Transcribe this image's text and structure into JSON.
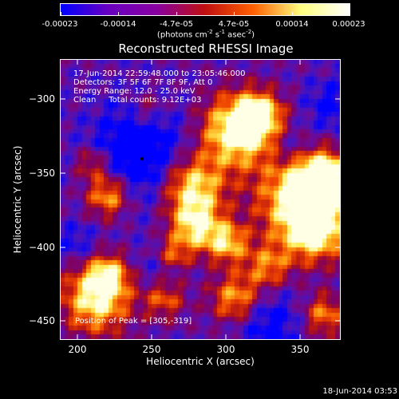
{
  "colorbar": {
    "labels": [
      "-0.00023",
      "-0.00014",
      "-4.7e-05",
      "4.7e-05",
      "0.00014",
      "0.00023"
    ],
    "units_prefix": "(photons cm",
    "units_exp1": "-2",
    "units_mid": " s",
    "units_exp2": "-1",
    "units_mid2": " asec",
    "units_exp3": "-2",
    "units_suffix": ")",
    "colors": [
      "#0000ff",
      "#6a00c0",
      "#8800a0",
      "#c01010",
      "#ff6000",
      "#ffff80",
      "#ffffff"
    ]
  },
  "plot": {
    "title": "Reconstructed RHESSI Image",
    "annotation": {
      "line1": "17-Jun-2014 22:59:48.000 to 23:05:46.000",
      "line2": "Detectors: 3F 5F 6F 7F 8F 9F, Att 0",
      "line3": "Energy Range: 12.0 - 25.0 keV",
      "line4": "Clean     Total counts: 9.12E+03"
    },
    "peak_label": "Position of Peak = [305,-319]",
    "xlabel": "Heliocentric X (arcsec)",
    "ylabel": "Heliocentric Y (arcsec)",
    "xticks": [
      "200",
      "250",
      "300",
      "350"
    ],
    "yticks": [
      "−300",
      "−350",
      "−400",
      "−450"
    ]
  },
  "footer": {
    "timestamp": "18-Jun-2014 03:53"
  }
}
